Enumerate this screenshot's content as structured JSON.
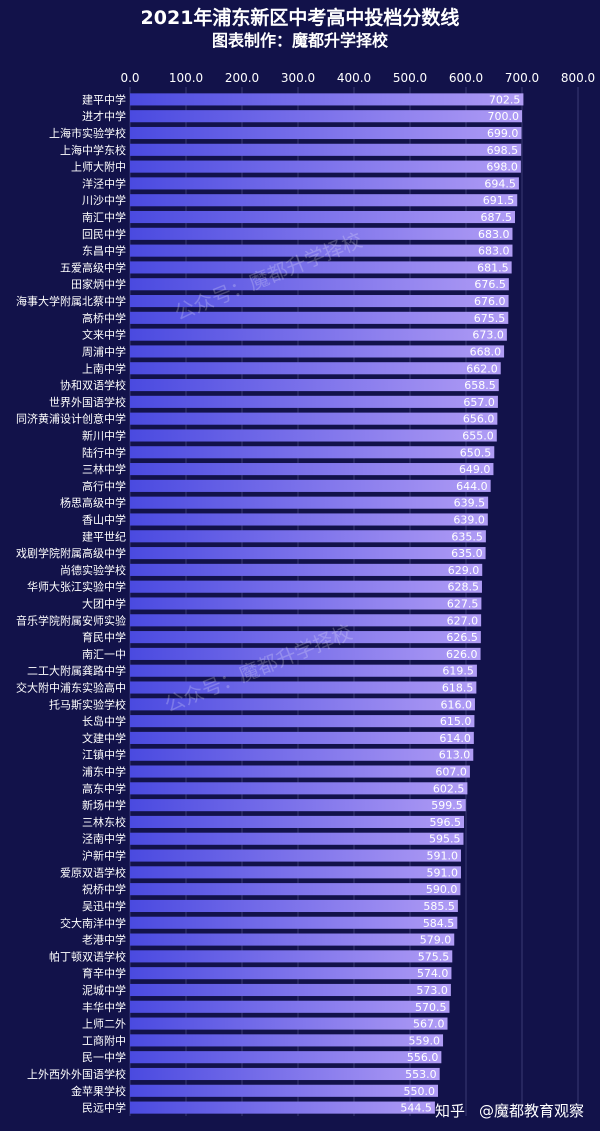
{
  "chart_data": {
    "type": "bar",
    "orientation": "horizontal",
    "title": "2021年浦东新区中考高中投档分数线",
    "subtitle": "图表制作：魔都升学择校",
    "xlim": [
      0,
      800
    ],
    "ticks": [
      "0.0",
      "100.0",
      "200.0",
      "300.0",
      "400.0",
      "500.0",
      "600.0",
      "700.0",
      "800.0"
    ],
    "grid": true,
    "categories": [
      "建平中学",
      "进才中学",
      "上海市实验学校",
      "上海中学东校",
      "上师大附中",
      "洋泾中学",
      "川沙中学",
      "南汇中学",
      "回民中学",
      "东昌中学",
      "五爱高级中学",
      "田家炳中学",
      "海事大学附属北蔡中学",
      "高桥中学",
      "文来中学",
      "周浦中学",
      "上南中学",
      "协和双语学校",
      "世界外国语学校",
      "同济黄浦设计创意中学",
      "新川中学",
      "陆行中学",
      "三林中学",
      "高行中学",
      "杨思高级中学",
      "香山中学",
      "建平世纪",
      "戏剧学院附属高级中学",
      "尚德实验学校",
      "华师大张江实验中学",
      "大团中学",
      "音乐学院附属安师实验",
      "育民中学",
      "南汇一中",
      "二工大附属龚路中学",
      "交大附中浦东实验高中",
      "托马斯实验学校",
      "长岛中学",
      "文建中学",
      "江镇中学",
      "浦东中学",
      "高东中学",
      "新场中学",
      "三林东校",
      "泾南中学",
      "沪新中学",
      "爱原双语学校",
      "祝桥中学",
      "吴迅中学",
      "交大南洋中学",
      "老港中学",
      "帕丁顿双语学校",
      "育辛中学",
      "泥城中学",
      "丰华中学",
      "上师二外",
      "工商附中",
      "民一中学",
      "上外西外外国语学校",
      "金苹果学校",
      "民远中学"
    ],
    "values": [
      702.5,
      700.0,
      699.0,
      698.5,
      698.0,
      694.5,
      691.5,
      687.5,
      683.0,
      683.0,
      681.5,
      676.5,
      676.0,
      675.5,
      673.0,
      668.0,
      662.0,
      658.5,
      657.0,
      656.0,
      655.0,
      650.5,
      649.0,
      644.0,
      639.5,
      639.0,
      635.5,
      635.0,
      629.0,
      628.5,
      627.5,
      627.0,
      626.5,
      626.0,
      619.5,
      618.5,
      616.0,
      615.0,
      614.0,
      613.0,
      607.0,
      602.5,
      599.5,
      596.5,
      595.5,
      591.0,
      591.0,
      590.0,
      585.5,
      584.5,
      579.0,
      575.5,
      574.0,
      573.0,
      570.5,
      567.0,
      559.0,
      556.0,
      553.0,
      550.0,
      544.5
    ],
    "value_labels": [
      "702.5",
      "700.0",
      "699.0",
      "698.5",
      "698.0",
      "694.5",
      "691.5",
      "687.5",
      "683.0",
      "683.0",
      "681.5",
      "676.5",
      "676.0",
      "675.5",
      "673.0",
      "668.0",
      "662.0",
      "658.5",
      "657.0",
      "656.0",
      "655.0",
      "650.5",
      "649.0",
      "644.0",
      "639.5",
      "639.0",
      "635.5",
      "635.0",
      "629.0",
      "628.5",
      "627.5",
      "627.0",
      "626.5",
      "626.0",
      "619.5",
      "618.5",
      "616.0",
      "615.0",
      "614.0",
      "613.0",
      "607.0",
      "602.5",
      "599.5",
      "596.5",
      "595.5",
      "591.0",
      "591.0",
      "590.0",
      "585.5",
      "584.5",
      "579.0",
      "575.5",
      "574.0",
      "573.0",
      "570.5",
      "567.0",
      "559.0",
      "556.0",
      "553.0",
      "550.0",
      "544.5"
    ],
    "colors": {
      "background": "#12124a",
      "bar_start": "#4a4ae0",
      "bar_end": "#b09cf5",
      "grid": "#3a3a74",
      "text": "#ffffff"
    }
  },
  "watermarks": [
    "公众号：魔都升学择校",
    "公众号：魔都升学择校"
  ],
  "footer": {
    "site": "知乎",
    "author": "@魔都教育观察"
  }
}
